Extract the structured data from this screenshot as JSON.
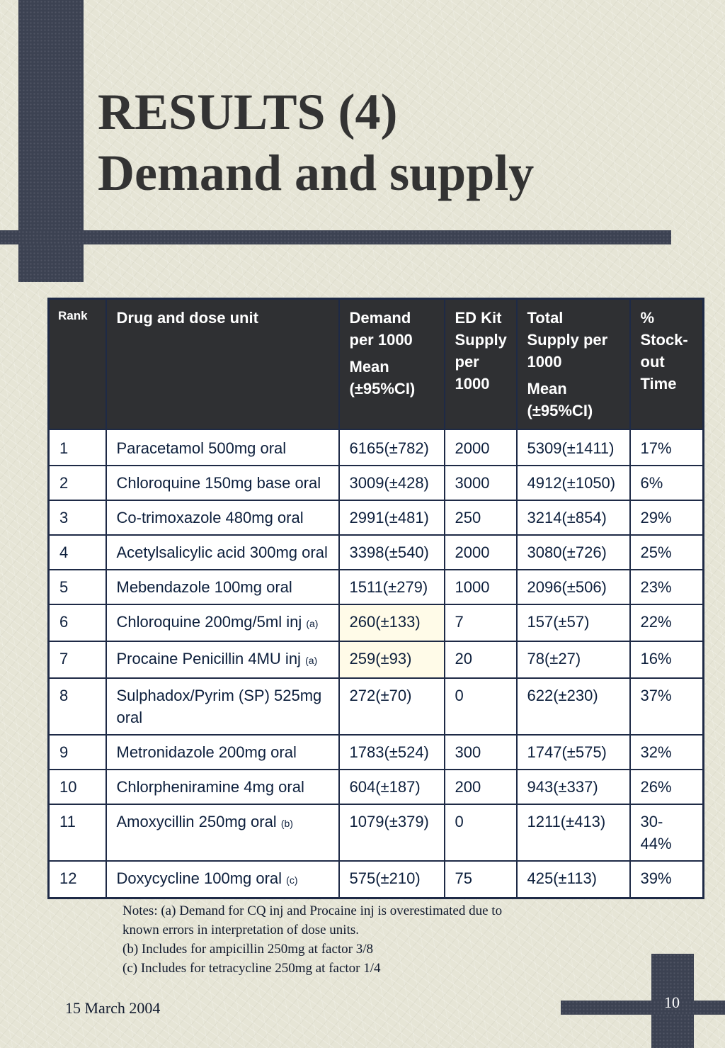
{
  "title": {
    "line1": "RESULTS (4)",
    "line2": "Demand and supply"
  },
  "table": {
    "headers": {
      "rank": "Rank",
      "drug": "Drug and dose unit",
      "demand_line1": "Demand per 1000",
      "demand_line2": "Mean (±95%CI)",
      "edkit": "ED Kit Supply per 1000",
      "supply_line1": "Total Supply per 1000",
      "supply_line2": "Mean (±95%CI)",
      "stockout": "% Stock-out Time"
    },
    "rows": [
      {
        "rank": "1",
        "drug": "Paracetamol 500mg oral",
        "note": "",
        "demand": "6165(±782)",
        "edkit": "2000",
        "supply": "5309(±1411)",
        "stockout": "17%"
      },
      {
        "rank": "2",
        "drug": "Chloroquine 150mg base oral",
        "note": "",
        "demand": "3009(±428)",
        "edkit": "3000",
        "supply": "4912(±1050)",
        "stockout": "6%"
      },
      {
        "rank": "3",
        "drug": "Co-trimoxazole 480mg oral",
        "note": "",
        "demand": "2991(±481)",
        "edkit": "250",
        "supply": "3214(±854)",
        "stockout": "29%"
      },
      {
        "rank": "4",
        "drug": "Acetylsalicylic acid 300mg oral",
        "note": "",
        "demand": "3398(±540)",
        "edkit": "2000",
        "supply": "3080(±726)",
        "stockout": "25%"
      },
      {
        "rank": "5",
        "drug": "Mebendazole 100mg oral",
        "note": "",
        "demand": "1511(±279)",
        "edkit": "1000",
        "supply": "2096(±506)",
        "stockout": "23%"
      },
      {
        "rank": "6",
        "drug": "Chloroquine 200mg/5ml inj",
        "note": "(a)",
        "demand": "260(±133)",
        "edkit": "7",
        "supply": "157(±57)",
        "stockout": "22%"
      },
      {
        "rank": "7",
        "drug": "Procaine Penicillin 4MU inj",
        "note": "(a)",
        "demand": "259(±93)",
        "edkit": "20",
        "supply": "78(±27)",
        "stockout": "16%"
      },
      {
        "rank": "8",
        "drug": "Sulphadox/Pyrim (SP) 525mg oral",
        "note": "",
        "demand": "272(±70)",
        "edkit": "0",
        "supply": "622(±230)",
        "stockout": "37%"
      },
      {
        "rank": "9",
        "drug": "Metronidazole 200mg oral",
        "note": "",
        "demand": "1783(±524)",
        "edkit": "300",
        "supply": "1747(±575)",
        "stockout": "32%"
      },
      {
        "rank": "10",
        "drug": "Chlorpheniramine 4mg oral",
        "note": "",
        "demand": "604(±187)",
        "edkit": "200",
        "supply": "943(±337)",
        "stockout": "26%"
      },
      {
        "rank": "11",
        "drug": "Amoxycillin 250mg oral",
        "note": "(b)",
        "demand": "1079(±379)",
        "edkit": "0",
        "supply": "1211(±413)",
        "stockout": "30-44%"
      },
      {
        "rank": "12",
        "drug": "Doxycycline 100mg oral",
        "note": "(c)",
        "demand": "575(±210)",
        "edkit": "75",
        "supply": "425(±113)",
        "stockout": "39%"
      }
    ]
  },
  "notes": {
    "line1": "Notes: (a) Demand for CQ inj and Procaine inj is overestimated due to",
    "line2": "known errors in interpretation of dose units.",
    "line3": "(b) Includes for ampicillin 250mg at factor 3/8",
    "line4": "(c)  Includes for tetracycline 250mg at factor 1/4"
  },
  "footer": {
    "date": "15 March 2004",
    "page": "10"
  },
  "colors": {
    "bar": "#3c4252",
    "header_bg": "#2f3033",
    "highlight": "#fffbe8",
    "text": "#0d1f3c"
  }
}
